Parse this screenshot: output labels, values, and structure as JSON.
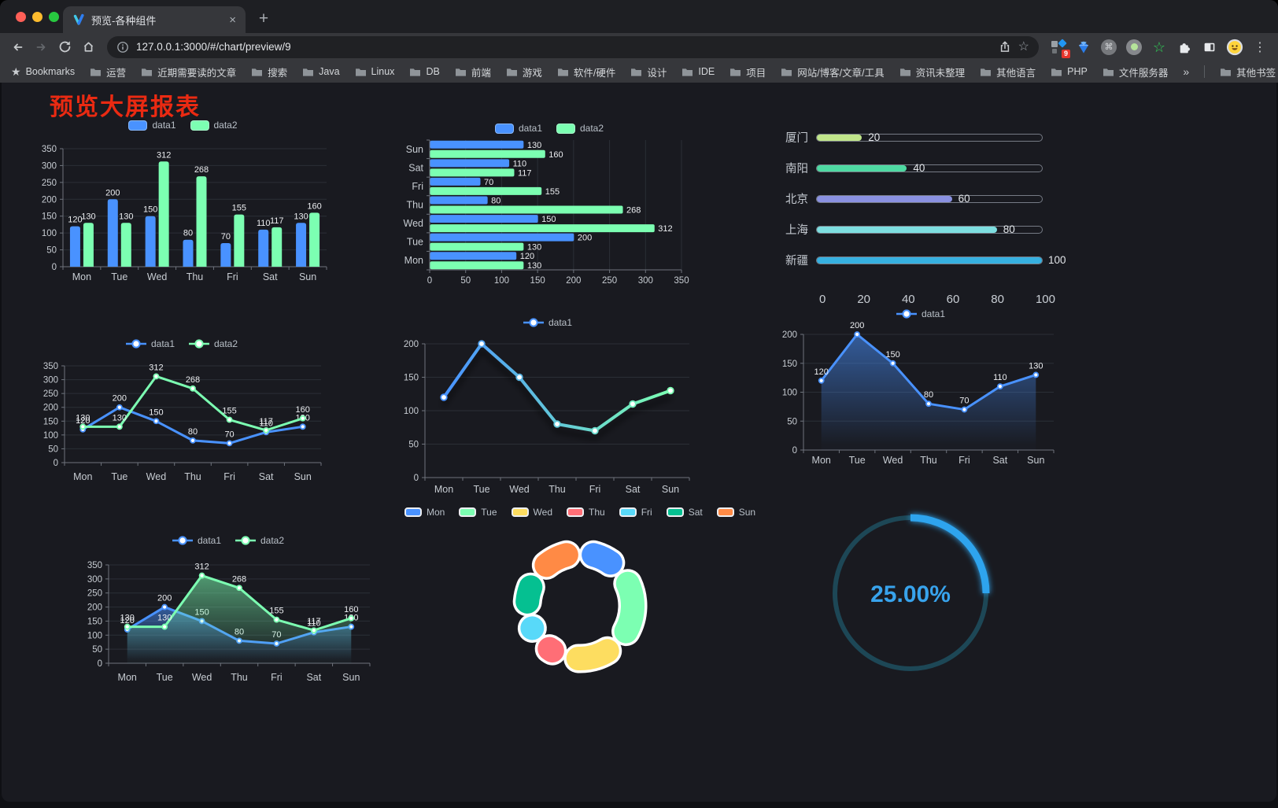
{
  "browser": {
    "tab_title": "预览-各种组件",
    "url": "127.0.0.1:3000/#/chart/preview/9",
    "bookmarks_label": "Bookmarks",
    "bookmarks": [
      "运营",
      "近期需要读的文章",
      "搜索",
      "Java",
      "Linux",
      "DB",
      "前端",
      "游戏",
      "软件/硬件",
      "设计",
      "IDE",
      "项目",
      "网站/博客/文章/工具",
      "资讯未整理",
      "其他语言",
      "PHP",
      "文件服务器"
    ],
    "overflow_chevron": "»",
    "other_bookmarks": "其他书签",
    "extensions_badge": "9"
  },
  "page": {
    "title": "预览大屏报表",
    "title_color": "#ea2a12"
  },
  "chart_data": [
    {
      "id": "bar-vertical",
      "type": "bar",
      "categories": [
        "Mon",
        "Tue",
        "Wed",
        "Thu",
        "Fri",
        "Sat",
        "Sun"
      ],
      "series": [
        {
          "name": "data1",
          "color": "#4992ff",
          "values": [
            120,
            200,
            150,
            80,
            70,
            110,
            130
          ]
        },
        {
          "name": "data2",
          "color": "#7cffb2",
          "values": [
            130,
            130,
            312,
            268,
            155,
            117,
            160
          ]
        }
      ],
      "ylim": [
        0,
        350
      ],
      "ytick": 50,
      "labels": true,
      "legend_position": "top",
      "grid": true
    },
    {
      "id": "bar-horizontal",
      "type": "bar",
      "orientation": "horizontal",
      "categories": [
        "Mon",
        "Tue",
        "Wed",
        "Thu",
        "Fri",
        "Sat",
        "Sun"
      ],
      "series": [
        {
          "name": "data1",
          "color": "#4992ff",
          "values": [
            120,
            200,
            150,
            80,
            70,
            110,
            130
          ]
        },
        {
          "name": "data2",
          "color": "#7cffb2",
          "values": [
            130,
            130,
            312,
            268,
            155,
            117,
            160
          ]
        }
      ],
      "xlim": [
        0,
        350
      ],
      "xtick": 50,
      "labels": true,
      "legend_position": "top",
      "grid": true
    },
    {
      "id": "city-progress",
      "type": "bar",
      "orientation": "progress",
      "rows": [
        {
          "label": "厦门",
          "value": 20,
          "color": "#c0e58a"
        },
        {
          "label": "南阳",
          "value": 40,
          "color": "#4ed9a2"
        },
        {
          "label": "北京",
          "value": 60,
          "color": "#8a91e1"
        },
        {
          "label": "上海",
          "value": 80,
          "color": "#7ddee0"
        },
        {
          "label": "新疆",
          "value": 100,
          "color": "#36b0e0"
        }
      ],
      "xlim": [
        0,
        100
      ],
      "xticks": [
        0,
        20,
        40,
        60,
        80,
        100
      ]
    },
    {
      "id": "line-two",
      "type": "line",
      "categories": [
        "Mon",
        "Tue",
        "Wed",
        "Thu",
        "Fri",
        "Sat",
        "Sun"
      ],
      "series": [
        {
          "name": "data1",
          "color": "#4992ff",
          "values": [
            120,
            200,
            150,
            80,
            70,
            110,
            130
          ]
        },
        {
          "name": "data2",
          "color": "#7cffb2",
          "values": [
            130,
            130,
            312,
            268,
            155,
            117,
            160
          ]
        }
      ],
      "ylim": [
        0,
        350
      ],
      "ytick": 50,
      "labels": true,
      "legend_position": "top",
      "grid": true
    },
    {
      "id": "line-gradient",
      "type": "line",
      "categories": [
        "Mon",
        "Tue",
        "Wed",
        "Thu",
        "Fri",
        "Sat",
        "Sun"
      ],
      "series": [
        {
          "name": "data1",
          "gradient": [
            "#4992ff",
            "#7cffb2"
          ],
          "values": [
            120,
            200,
            150,
            80,
            70,
            110,
            130
          ],
          "shadow": true
        }
      ],
      "ylim": [
        0,
        200
      ],
      "ytick": 50,
      "labels": false,
      "legend_position": "top",
      "grid": true
    },
    {
      "id": "area-blue",
      "type": "area",
      "categories": [
        "Mon",
        "Tue",
        "Wed",
        "Thu",
        "Fri",
        "Sat",
        "Sun"
      ],
      "series": [
        {
          "name": "data1",
          "color": "#4992ff",
          "values": [
            120,
            200,
            150,
            80,
            70,
            110,
            130
          ],
          "area": true
        }
      ],
      "ylim": [
        0,
        200
      ],
      "ytick": 50,
      "labels": true,
      "legend_position": "top",
      "grid": true
    },
    {
      "id": "area-two",
      "type": "area",
      "categories": [
        "Mon",
        "Tue",
        "Wed",
        "Thu",
        "Fri",
        "Sat",
        "Sun"
      ],
      "series": [
        {
          "name": "data1",
          "color": "#4992ff",
          "values": [
            120,
            200,
            150,
            80,
            70,
            110,
            130
          ],
          "area": true
        },
        {
          "name": "data2",
          "color": "#7cffb2",
          "values": [
            130,
            130,
            312,
            268,
            155,
            117,
            160
          ],
          "area": true
        }
      ],
      "ylim": [
        0,
        350
      ],
      "ytick": 50,
      "labels": true,
      "legend_position": "top",
      "grid": true
    },
    {
      "id": "donut",
      "type": "pie",
      "categories": [
        "Mon",
        "Tue",
        "Wed",
        "Thu",
        "Fri",
        "Sat",
        "Sun"
      ],
      "values": [
        120,
        200,
        150,
        80,
        70,
        110,
        130
      ],
      "colors": [
        "#4992ff",
        "#7cffb2",
        "#fddd60",
        "#ff6e76",
        "#58d9f9",
        "#05c091",
        "#ff8a45"
      ],
      "border_color": "#ffffff",
      "legend_position": "top"
    },
    {
      "id": "gauge",
      "type": "gauge",
      "value": 25,
      "max": 100,
      "display": "25.00%",
      "progress_color": "#2da4ee",
      "track_color": "#1d4756",
      "text_color": "#38a3ec"
    }
  ]
}
